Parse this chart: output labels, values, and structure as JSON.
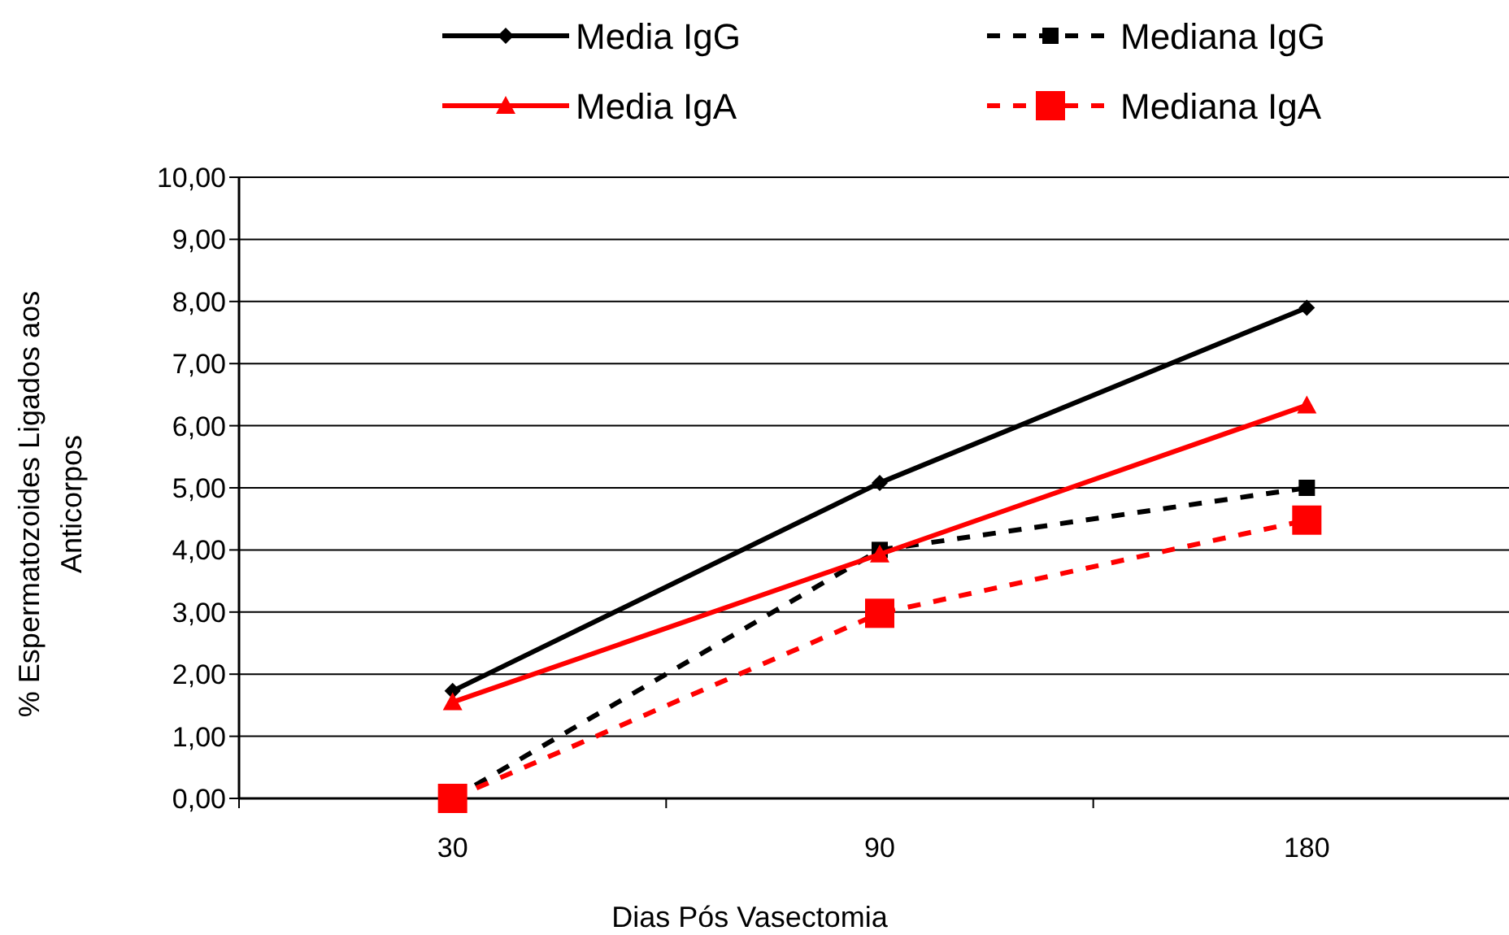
{
  "chart_data": {
    "type": "line",
    "xlabel": "Dias Pós Vasectomia",
    "ylabel": "% Espermatozoides Ligados aos Anticorpos",
    "categories": [
      "30",
      "90",
      "180"
    ],
    "series": [
      {
        "name": "Media IgG",
        "color": "#000000",
        "values": [
          1.73,
          5.08,
          7.9
        ],
        "marker": "diamond",
        "line_style": "solid"
      },
      {
        "name": "Mediana IgG",
        "color": "#000000",
        "values": [
          0,
          4.0,
          5.0
        ],
        "marker": "square",
        "line_style": "dashed"
      },
      {
        "name": "Media IgA",
        "color": "#ff0000",
        "values": [
          1.55,
          3.93,
          6.33
        ],
        "marker": "triangle",
        "line_style": "solid"
      },
      {
        "name": "Mediana IgA",
        "color": "#ff0000",
        "values": [
          0,
          2.98,
          4.48
        ],
        "marker": "square",
        "line_style": "dashed"
      }
    ],
    "ylim": [
      0,
      10
    ],
    "yticks": [
      {
        "value": 0,
        "label": "0,00"
      },
      {
        "value": 1,
        "label": "1,00"
      },
      {
        "value": 2,
        "label": "2,00"
      },
      {
        "value": 3,
        "label": "3,00"
      },
      {
        "value": 4,
        "label": "4,00"
      },
      {
        "value": 5,
        "label": "5,00"
      },
      {
        "value": 6,
        "label": "6,00"
      },
      {
        "value": 7,
        "label": "7,00"
      },
      {
        "value": 8,
        "label": "8,00"
      },
      {
        "value": 9,
        "label": "9,00"
      },
      {
        "value": 10,
        "label": "10,00"
      }
    ],
    "grid": "y",
    "legend": "top"
  }
}
